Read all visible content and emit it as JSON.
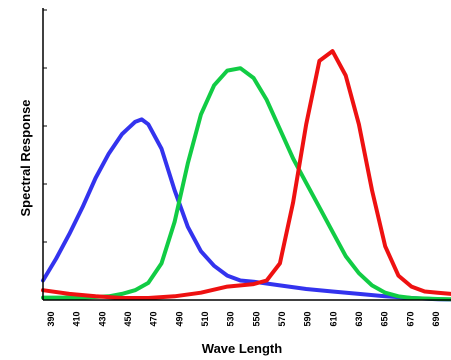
{
  "chart_data": {
    "type": "line",
    "xlabel": "Wave Length",
    "ylabel": "Spectral Response",
    "x_tick_labels": [
      "390",
      "410",
      "430",
      "450",
      "470",
      "490",
      "510",
      "530",
      "550",
      "570",
      "590",
      "610",
      "630",
      "650",
      "670",
      "690"
    ],
    "xlim": [
      390,
      700
    ],
    "ylim": [
      0,
      100
    ],
    "grid": false,
    "series": [
      {
        "color": "#3333ee",
        "x": [
          390,
          400,
          410,
          420,
          430,
          440,
          450,
          460,
          465,
          470,
          480,
          490,
          500,
          510,
          520,
          530,
          540,
          550,
          570,
          590,
          610,
          630,
          650,
          670,
          690,
          700
        ],
        "y": [
          8,
          17,
          27,
          38,
          50,
          60,
          68,
          73,
          74,
          72,
          62,
          45,
          30,
          20,
          14,
          10,
          8,
          7.5,
          6,
          4.5,
          3.5,
          2.5,
          1.5,
          0.8,
          0.3,
          0.2
        ]
      },
      {
        "color": "#11cc44",
        "x": [
          390,
          420,
          440,
          450,
          460,
          470,
          480,
          490,
          500,
          510,
          520,
          530,
          540,
          550,
          560,
          570,
          580,
          590,
          600,
          610,
          620,
          630,
          640,
          650,
          660,
          670,
          690,
          700
        ],
        "y": [
          1,
          1,
          1.5,
          2.5,
          4,
          7,
          15,
          32,
          56,
          76,
          88,
          94,
          95,
          91,
          82,
          70,
          58,
          48,
          38,
          28,
          18,
          11,
          6,
          3,
          1.5,
          0.8,
          0.4,
          0.3
        ]
      },
      {
        "color": "#ee1111",
        "x": [
          390,
          410,
          430,
          450,
          470,
          490,
          510,
          530,
          550,
          560,
          570,
          580,
          590,
          600,
          610,
          620,
          630,
          640,
          650,
          660,
          670,
          680,
          690,
          700
        ],
        "y": [
          4,
          2.5,
          1.5,
          0.8,
          0.8,
          1.5,
          3,
          5.5,
          6.5,
          8,
          15,
          40,
          72,
          98,
          102,
          92,
          72,
          45,
          22,
          10,
          5.5,
          3.5,
          3,
          2.5
        ]
      }
    ]
  }
}
